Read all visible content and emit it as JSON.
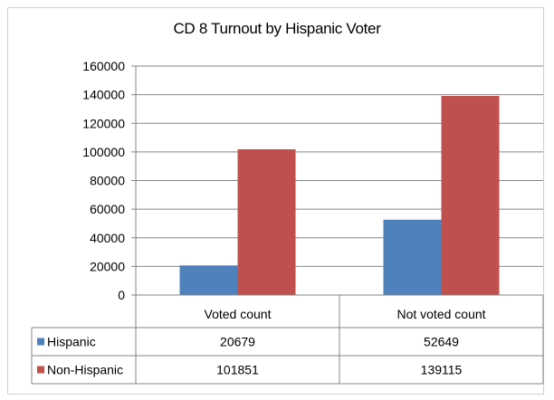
{
  "chart_data": {
    "type": "bar",
    "title": "CD 8 Turnout by Hispanic Voter",
    "categories": [
      "Voted count",
      "Not voted count"
    ],
    "series": [
      {
        "name": "Hispanic",
        "color": "#4f81bd",
        "values": [
          20679,
          52649
        ]
      },
      {
        "name": "Non-Hispanic",
        "color": "#c0504d",
        "values": [
          101851,
          139115
        ]
      }
    ],
    "yticks": [
      0,
      20000,
      40000,
      60000,
      80000,
      100000,
      120000,
      140000,
      160000
    ],
    "ylim": [
      0,
      160000
    ],
    "grid": true,
    "legend": "data-table"
  }
}
